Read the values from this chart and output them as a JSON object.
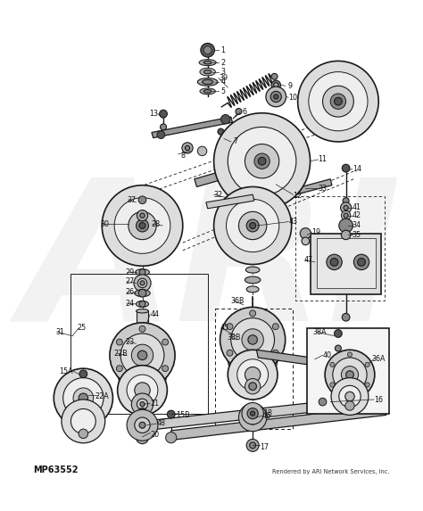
{
  "bg_color": "#ffffff",
  "fig_width": 4.74,
  "fig_height": 5.73,
  "dpi": 100,
  "watermark_text": "ARI",
  "watermark_alpha": 0.1,
  "footer_left": "MP63552",
  "footer_right": "Rendered by ARI Network Services, Inc.",
  "line_color": "#1a1a1a",
  "label_color": "#111111",
  "label_fontsize": 5.8
}
